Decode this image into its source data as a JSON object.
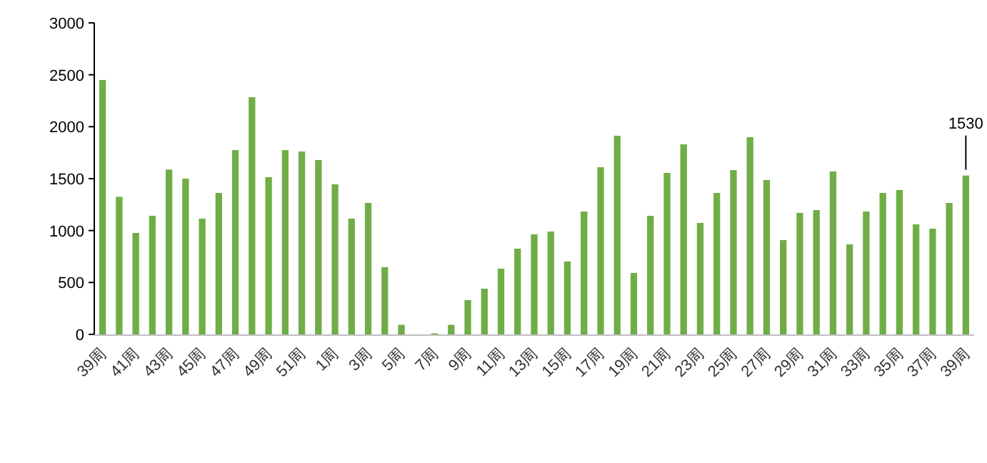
{
  "chart_data": {
    "type": "bar",
    "categories": [
      "39周",
      null,
      "41周",
      null,
      "43周",
      null,
      "45周",
      null,
      "47周",
      null,
      "49周",
      null,
      "51周",
      null,
      "1周",
      null,
      "3周",
      null,
      "5周",
      null,
      "7周",
      null,
      "9周",
      null,
      "11周",
      null,
      "13周",
      null,
      "15周",
      null,
      "17周",
      null,
      "19周",
      null,
      "21周",
      null,
      "23周",
      null,
      "25周",
      null,
      "27周",
      null,
      "29周",
      null,
      "31周",
      null,
      "33周",
      null,
      "35周",
      null,
      "37周",
      null,
      "39周"
    ],
    "values": [
      2450,
      1325,
      977,
      1142,
      1587,
      1500,
      1115,
      1362,
      1775,
      2284,
      1514,
      1775,
      1761,
      1679,
      1445,
      1115,
      1266,
      647,
      92,
      0,
      10,
      92,
      330,
      440,
      633,
      826,
      963,
      991,
      702,
      1183,
      1610,
      1913,
      592,
      1142,
      1555,
      1830,
      1073,
      1362,
      1582,
      1899,
      1486,
      908,
      1170,
      1197,
      1569,
      867,
      1183,
      1362,
      1390,
      1060,
      1018,
      1266,
      1530
    ],
    "value_labels": [
      null,
      null,
      null,
      null,
      null,
      null,
      null,
      null,
      null,
      null,
      null,
      null,
      null,
      null,
      null,
      null,
      null,
      null,
      null,
      null,
      null,
      null,
      null,
      null,
      null,
      null,
      null,
      null,
      null,
      null,
      null,
      null,
      null,
      null,
      null,
      null,
      null,
      null,
      null,
      null,
      null,
      null,
      null,
      null,
      null,
      null,
      null,
      null,
      null,
      null,
      null,
      null,
      "1530"
    ],
    "color": "#70ad47",
    "ylim": [
      0,
      3000
    ],
    "yticks": [
      0,
      500,
      1000,
      1500,
      2000,
      2500,
      3000
    ],
    "grid": false
  }
}
